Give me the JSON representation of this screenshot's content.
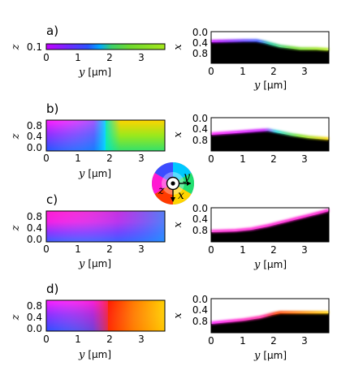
{
  "panels": [
    {
      "id": "a",
      "label": "a)",
      "left": {
        "ylabel": "z",
        "xlabel_var": "y",
        "xlabel_unit": "[μm]",
        "yticks": [
          "0.1"
        ],
        "xticks": [
          "0",
          "1",
          "2",
          "3"
        ],
        "description": "in-plane magnetization colour along thin strip"
      },
      "right": {
        "ylabel": "x",
        "xlabel_var": "y",
        "xlabel_unit": "[μm]",
        "yticks": [
          "0.0",
          "0.4",
          "0.8"
        ],
        "xticks": [
          "0",
          "1",
          "2",
          "3"
        ],
        "boundary_x_um": [
          0.45,
          0.45,
          0.46,
          0.5,
          0.6,
          0.7,
          0.75,
          0.78
        ]
      }
    },
    {
      "id": "b",
      "label": "b)",
      "left": {
        "ylabel": "z",
        "xlabel_var": "y",
        "xlabel_unit": "[μm]",
        "yticks": [
          "0.8",
          "0.4",
          "0.0"
        ],
        "xticks": [
          "0",
          "1",
          "2",
          "3"
        ]
      },
      "right": {
        "ylabel": "x",
        "xlabel_var": "y",
        "xlabel_unit": "[μm]",
        "yticks": [
          "0.0",
          "0.4",
          "0.8"
        ],
        "xticks": [
          "0",
          "1",
          "2",
          "3"
        ],
        "boundary_x_um": [
          0.6,
          0.55,
          0.5,
          0.45,
          0.5,
          0.55,
          0.6,
          0.65
        ]
      }
    },
    {
      "id": "c",
      "label": "c)",
      "left": {
        "ylabel": "z",
        "xlabel_var": "y",
        "xlabel_unit": "[μm]",
        "yticks": [
          "0.8",
          "0.4",
          "0.0"
        ],
        "xticks": [
          "0",
          "1",
          "2",
          "3"
        ]
      },
      "right": {
        "ylabel": "x",
        "xlabel_var": "y",
        "xlabel_unit": "[μm]",
        "yticks": [
          "0.0",
          "0.4",
          "0.8"
        ],
        "xticks": [
          "0",
          "1",
          "2",
          "3"
        ],
        "boundary_x_um": [
          0.8,
          0.78,
          0.74,
          0.68,
          0.58,
          0.45,
          0.32,
          0.22
        ]
      }
    },
    {
      "id": "d",
      "label": "d)",
      "left": {
        "ylabel": "z",
        "xlabel_var": "y",
        "xlabel_unit": "[μm]",
        "yticks": [
          "0.8",
          "0.4",
          "0.0"
        ],
        "xticks": [
          "0",
          "1",
          "2",
          "3"
        ]
      },
      "right": {
        "ylabel": "x",
        "xlabel_var": "y",
        "xlabel_unit": "[μm]",
        "yticks": [
          "0.0",
          "0.4",
          "0.8"
        ],
        "xticks": [
          "0",
          "1",
          "2",
          "3"
        ],
        "boundary_x_um": [
          0.78,
          0.72,
          0.65,
          0.58,
          0.5,
          0.45,
          0.45,
          0.45
        ]
      }
    }
  ],
  "color_wheel": {
    "labels": [
      "y",
      "z",
      "x"
    ]
  }
}
